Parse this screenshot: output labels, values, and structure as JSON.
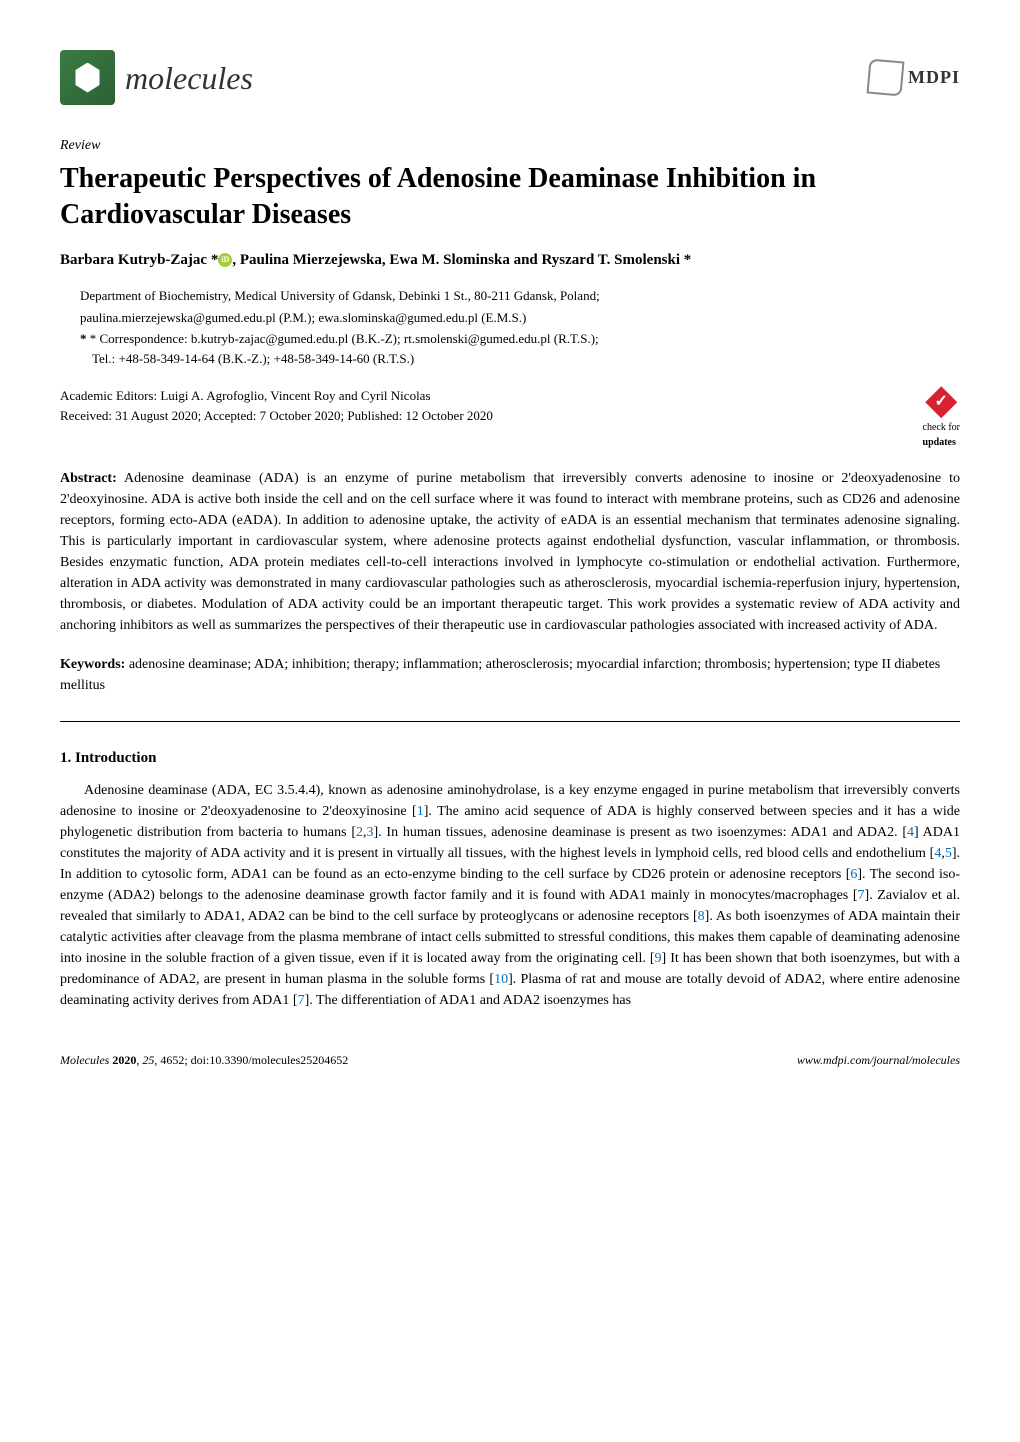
{
  "header": {
    "journal_name": "molecules",
    "publisher": "MDPI"
  },
  "article": {
    "type": "Review",
    "title": "Therapeutic Perspectives of Adenosine Deaminase Inhibition in Cardiovascular Diseases",
    "authors": "Barbara Kutryb-Zajac *, Paulina Mierzejewska, Ewa M. Slominska and Ryszard T. Smolenski *",
    "affiliation_line1": "Department of Biochemistry, Medical University of Gdansk, Debinki 1 St., 80-211 Gdansk, Poland;",
    "affiliation_line2": "paulina.mierzejewska@gumed.edu.pl (P.M.); ewa.slominska@gumed.edu.pl (E.M.S.)",
    "correspondence_line1": "* Correspondence: b.kutryb-zajac@gumed.edu.pl (B.K.-Z); rt.smolenski@gumed.edu.pl (R.T.S.);",
    "correspondence_line2": "Tel.: +48-58-349-14-64 (B.K.-Z.); +48-58-349-14-60 (R.T.S.)",
    "editors": "Academic Editors: Luigi A. Agrofoglio, Vincent Roy and Cyril Nicolas",
    "dates": "Received: 31 August 2020; Accepted: 7 October 2020; Published: 12 October 2020",
    "check_updates_label": "check for",
    "check_updates_bold": "updates"
  },
  "abstract": {
    "label": "Abstract:",
    "text": " Adenosine deaminase (ADA) is an enzyme of purine metabolism that irreversibly converts adenosine to inosine or 2'deoxyadenosine to 2'deoxyinosine. ADA is active both inside the cell and on the cell surface where it was found to interact with membrane proteins, such as CD26 and adenosine receptors, forming ecto-ADA (eADA). In addition to adenosine uptake, the activity of eADA is an essential mechanism that terminates adenosine signaling. This is particularly important in cardiovascular system, where adenosine protects against endothelial dysfunction, vascular inflammation, or thrombosis. Besides enzymatic function, ADA protein mediates cell-to-cell interactions involved in lymphocyte co-stimulation or endothelial activation. Furthermore, alteration in ADA activity was demonstrated in many cardiovascular pathologies such as atherosclerosis, myocardial ischemia-reperfusion injury, hypertension, thrombosis, or diabetes. Modulation of ADA activity could be an important therapeutic target. This work provides a systematic review of ADA activity and anchoring inhibitors as well as summarizes the perspectives of their therapeutic use in cardiovascular pathologies associated with increased activity of ADA."
  },
  "keywords": {
    "label": "Keywords:",
    "text": " adenosine deaminase; ADA; inhibition; therapy; inflammation; atherosclerosis; myocardial infarction; thrombosis; hypertension; type II diabetes mellitus"
  },
  "section1": {
    "heading": "1. Introduction",
    "body_html": "Adenosine deaminase (ADA, EC 3.5.4.4), known as adenosine aminohydrolase, is a key enzyme engaged in purine metabolism that irreversibly converts adenosine to inosine or 2'deoxyadenosine to 2'deoxyinosine [<span class='ref-link'>1</span>]. The amino acid sequence of ADA is highly conserved between species and it has a wide phylogenetic distribution from bacteria to humans [<span class='ref-link'>2</span>,<span class='ref-link'>3</span>]. In human tissues, adenosine deaminase is present as two isoenzymes: ADA1 and ADA2. [<span class='ref-link'>4</span>] ADA1 constitutes the majority of ADA activity and it is present in virtually all tissues, with the highest levels in lymphoid cells, red blood cells and endothelium [<span class='ref-link'>4</span>,<span class='ref-link'>5</span>]. In addition to cytosolic form, ADA1 can be found as an ecto-enzyme binding to the cell surface by CD26 protein or adenosine receptors [<span class='ref-link'>6</span>]. The second iso-enzyme (ADA2) belongs to the adenosine deaminase growth factor family and it is found with ADA1 mainly in monocytes/macrophages [<span class='ref-link'>7</span>]. Zavialov et al. revealed that similarly to ADA1, ADA2 can be bind to the cell surface by proteoglycans or adenosine receptors [<span class='ref-link'>8</span>]. As both isoenzymes of ADA maintain their catalytic activities after cleavage from the plasma membrane of intact cells submitted to stressful conditions, this makes them capable of deaminating adenosine into inosine in the soluble fraction of a given tissue, even if it is located away from the originating cell. [<span class='ref-link'>9</span>] It has been shown that both isoenzymes, but with a predominance of ADA2, are present in human plasma in the soluble forms [<span class='ref-link'>10</span>]. Plasma of rat and mouse are totally devoid of ADA2, where entire adenosine deaminating activity derives from ADA1 [<span class='ref-link'>7</span>]. The differentiation of ADA1 and ADA2 isoenzymes has"
  },
  "footer": {
    "left_journal": "Molecules",
    "left_rest": " 2020, 25, 4652; doi:10.3390/molecules25204652",
    "right": "www.mdpi.com/journal/molecules"
  },
  "colors": {
    "logo_bg": "#3a7d44",
    "orcid": "#a6ce39",
    "check_red": "#d92231",
    "ref_blue": "#0070c0"
  }
}
